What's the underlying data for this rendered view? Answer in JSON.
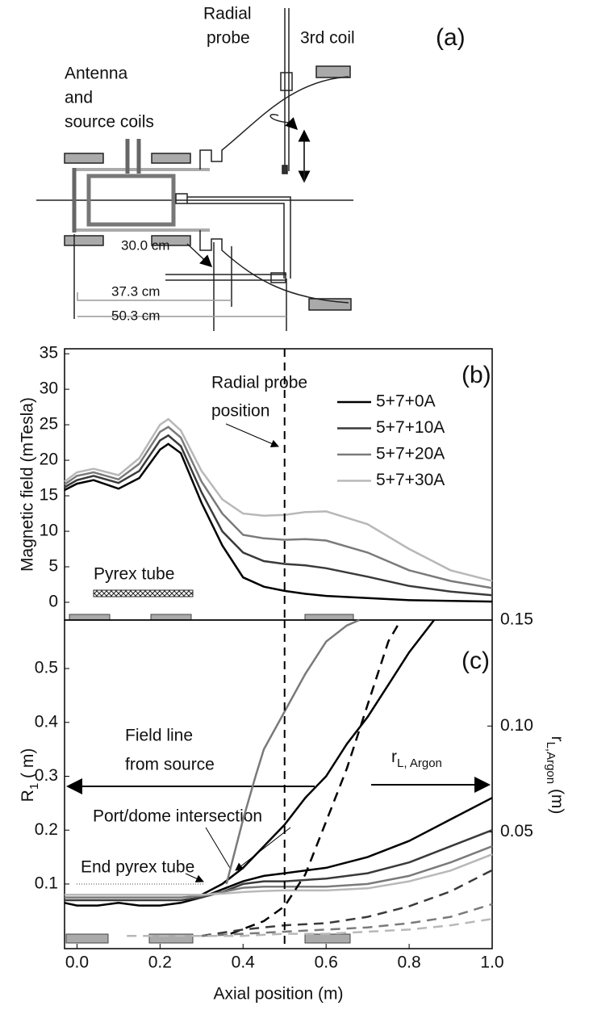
{
  "diagram": {
    "panel_label": "(a)",
    "probe_label": [
      "Radial",
      "probe"
    ],
    "coil_label": "3rd coil",
    "source_label": [
      "Antenna",
      "and",
      "source coils"
    ],
    "dimensions": [
      "30.0 cm",
      "37.3 cm",
      "50.3 cm"
    ]
  },
  "chart_data": [
    {
      "type": "line",
      "panel_label": "(b)",
      "y_label": "Magnetic field (mTesla)",
      "annotations": [
        "Radial probe",
        "position",
        "Pyrex tube"
      ],
      "x": [
        -0.03,
        0,
        0.04,
        0.1,
        0.15,
        0.2,
        0.22,
        0.25,
        0.3,
        0.35,
        0.4,
        0.45,
        0.5,
        0.55,
        0.6,
        0.7,
        0.8,
        0.9,
        1.0
      ],
      "series": [
        {
          "name": "5+7+0A",
          "color": "#000000",
          "values": [
            15.8,
            16.7,
            17.2,
            16,
            17.5,
            21.5,
            22.3,
            21,
            14,
            8,
            3.5,
            2.2,
            1.6,
            1.2,
            0.9,
            0.6,
            0.3,
            0.2,
            0.1
          ]
        },
        {
          "name": "5+7+10A",
          "color": "#3a3a3a",
          "values": [
            16.2,
            17.2,
            17.8,
            16.8,
            18.5,
            22.8,
            23.5,
            22,
            15.5,
            10,
            7,
            5.8,
            5.4,
            5.2,
            4.8,
            3.6,
            2.3,
            1.5,
            1.0
          ]
        },
        {
          "name": "5+7+20A",
          "color": "#7a7a7a",
          "values": [
            16.6,
            17.8,
            18.3,
            17.3,
            19.5,
            24,
            24.7,
            23.2,
            17,
            12.5,
            9.5,
            9,
            8.8,
            8.9,
            8.7,
            7,
            4.5,
            3,
            2.0
          ]
        },
        {
          "name": "5+7+30A",
          "color": "#b8b8b8",
          "values": [
            17,
            18.3,
            18.8,
            17.9,
            20.3,
            25,
            25.8,
            24.2,
            18.5,
            14.5,
            12.5,
            12.2,
            12.3,
            12.7,
            12.8,
            11,
            7.5,
            4.5,
            3.0
          ]
        }
      ],
      "xlim": [
        -0.03,
        1.0
      ],
      "ylim": [
        -2.5,
        35.7
      ],
      "yticks": [
        0,
        5,
        10,
        15,
        20,
        25,
        30,
        35
      ],
      "reference_x": 0.5,
      "legend": "upper right"
    },
    {
      "type": "line",
      "panel_label": "(c)",
      "x_label": "Axial position (m)",
      "y_label": {
        "main": "R",
        "sub": "1",
        "rest": " ( m)"
      },
      "y2_label": {
        "main": "r",
        "sub": "L,Argon",
        "rest": " (m)"
      },
      "annotations": {
        "field_line": [
          "Field line",
          "from source"
        ],
        "larmor": {
          "main": "r",
          "sub": "L, Argon"
        },
        "port": "Port/dome intersection",
        "pyrex_end": "End pyrex tube"
      },
      "series": [
        {
          "color": "#000000",
          "x": [
            0.3,
            0.35,
            0.4,
            0.45,
            0.5,
            0.55,
            0.6,
            0.65,
            0.7,
            0.75,
            0.8,
            0.86
          ],
          "values": [
            0.08,
            0.1,
            0.13,
            0.17,
            0.21,
            0.26,
            0.3,
            0.36,
            0.41,
            0.47,
            0.53,
            0.59
          ]
        },
        {
          "color": "#7a7a7a",
          "x": [
            0.36,
            0.37,
            0.4,
            0.43,
            0.45,
            0.5,
            0.55,
            0.6,
            0.65,
            0.68
          ],
          "values": [
            0.1,
            0.13,
            0.22,
            0.3,
            0.35,
            0.42,
            0.49,
            0.55,
            0.58,
            0.59
          ]
        },
        {
          "color": "#000000",
          "x": [
            -0.03,
            0,
            0.05,
            0.1,
            0.15,
            0.2,
            0.25,
            0.3,
            0.35,
            0.4,
            0.45,
            0.5,
            0.6,
            0.7,
            0.8,
            0.9,
            1.0
          ],
          "values": [
            0.065,
            0.06,
            0.06,
            0.065,
            0.06,
            0.06,
            0.065,
            0.075,
            0.09,
            0.105,
            0.115,
            0.12,
            0.13,
            0.15,
            0.18,
            0.22,
            0.26
          ]
        },
        {
          "color": "#3a3a3a",
          "x": [
            -0.03,
            0,
            0.05,
            0.1,
            0.15,
            0.2,
            0.25,
            0.3,
            0.35,
            0.4,
            0.45,
            0.5,
            0.6,
            0.7,
            0.8,
            0.9,
            1.0
          ],
          "values": [
            0.07,
            0.07,
            0.07,
            0.07,
            0.07,
            0.07,
            0.07,
            0.075,
            0.085,
            0.1,
            0.105,
            0.105,
            0.11,
            0.12,
            0.14,
            0.17,
            0.2
          ]
        },
        {
          "color": "#7a7a7a",
          "x": [
            -0.03,
            0,
            0.05,
            0.1,
            0.15,
            0.2,
            0.25,
            0.3,
            0.35,
            0.4,
            0.45,
            0.5,
            0.6,
            0.7,
            0.8,
            0.9,
            1.0
          ],
          "values": [
            0.075,
            0.075,
            0.075,
            0.075,
            0.075,
            0.075,
            0.075,
            0.078,
            0.085,
            0.093,
            0.095,
            0.095,
            0.095,
            0.1,
            0.115,
            0.14,
            0.17
          ]
        },
        {
          "color": "#b8b8b8",
          "x": [
            -0.03,
            0,
            0.05,
            0.1,
            0.15,
            0.2,
            0.25,
            0.3,
            0.35,
            0.4,
            0.45,
            0.5,
            0.6,
            0.7,
            0.8,
            0.9,
            1.0
          ],
          "values": [
            0.08,
            0.08,
            0.08,
            0.08,
            0.08,
            0.08,
            0.08,
            0.08,
            0.082,
            0.085,
            0.087,
            0.088,
            0.088,
            0.092,
            0.105,
            0.125,
            0.155
          ]
        },
        {
          "color": "#000000",
          "dash": true,
          "axis": "y2",
          "x": [
            0.37,
            0.45,
            0.5,
            0.55,
            0.6,
            0.65,
            0.7,
            0.75,
            0.78
          ],
          "values": [
            0.002,
            0.008,
            0.015,
            0.03,
            0.055,
            0.08,
            0.11,
            0.14,
            0.15
          ]
        },
        {
          "color": "#3a3a3a",
          "dash": true,
          "axis": "y2",
          "x": [
            0.3,
            0.4,
            0.5,
            0.6,
            0.7,
            0.8,
            0.9,
            1.0
          ],
          "values": [
            0.001,
            0.004,
            0.006,
            0.007,
            0.01,
            0.015,
            0.022,
            0.032
          ]
        },
        {
          "color": "#7a7a7a",
          "dash": true,
          "axis": "y2",
          "x": [
            0.3,
            0.4,
            0.5,
            0.6,
            0.7,
            0.8,
            0.9,
            1.0
          ],
          "values": [
            0.001,
            0.002,
            0.003,
            0.004,
            0.005,
            0.007,
            0.01,
            0.016
          ]
        },
        {
          "color": "#b8b8b8",
          "dash": true,
          "axis": "y2",
          "x": [
            0.12,
            0.2,
            0.3,
            0.4,
            0.5,
            0.6,
            0.7,
            0.8,
            0.9,
            1.0
          ],
          "values": [
            0.001,
            0.001,
            0.001,
            0.001,
            0.002,
            0.002,
            0.003,
            0.004,
            0.006,
            0.009
          ]
        }
      ],
      "xlim": [
        -0.03,
        1.0
      ],
      "ylim": [
        -0.02,
        0.59
      ],
      "y2lim": [
        -0.005,
        0.15
      ],
      "xticks": [
        {
          "value": 0,
          "label": "0.0"
        },
        0.2,
        0.4,
        0.6,
        0.8,
        {
          "value": 1,
          "label": "1.0"
        }
      ],
      "yticks": [
        0.1,
        0.2,
        0.3,
        0.4,
        0.5
      ],
      "y2ticks": [
        0.05,
        {
          "value": 0.1,
          "label": "0.10"
        },
        0.15
      ],
      "reference_x": 0.5
    }
  ]
}
